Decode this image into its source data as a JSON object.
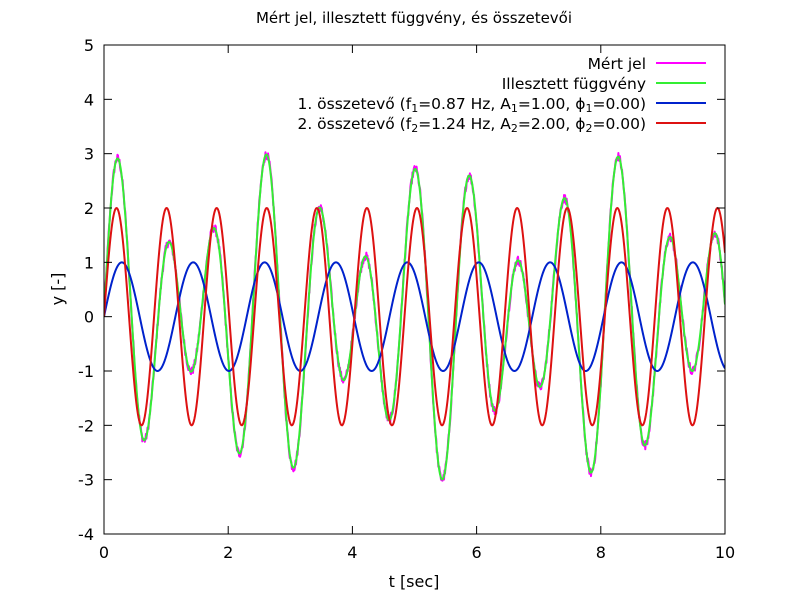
{
  "chart_data": {
    "type": "line",
    "title": "Mért jel, illesztett függvény, és összetevői",
    "xlabel": "t [sec]",
    "ylabel": "y [-]",
    "xlim": [
      0,
      10
    ],
    "ylim": [
      -4,
      5
    ],
    "xticks": [
      0,
      2,
      4,
      6,
      8,
      10
    ],
    "yticks": [
      -4,
      -3,
      -2,
      -1,
      0,
      1,
      2,
      3,
      4,
      5
    ],
    "grid": false,
    "legend_position": "top-right",
    "series": [
      {
        "name": "Mért jel",
        "color": "#ff00ff",
        "model": {
          "components": [
            {
              "freq": 0.87,
              "amp": 1.0,
              "phase": 0.0
            },
            {
              "freq": 1.24,
              "amp": 2.0,
              "phase": 0.0
            }
          ],
          "noise": 0.08
        }
      },
      {
        "name": "Illesztett függvény",
        "color": "#33ee33",
        "model": {
          "components": [
            {
              "freq": 0.87,
              "amp": 1.0,
              "phase": 0.0
            },
            {
              "freq": 1.24,
              "amp": 2.0,
              "phase": 0.0
            }
          ]
        }
      },
      {
        "name": "1. összetevő",
        "legend_parts": [
          "1. összetevő (f",
          "1",
          "=0.87 Hz, A",
          "1",
          "=1.00, ϕ",
          "1",
          "=0.00)"
        ],
        "color": "#0022cc",
        "model": {
          "components": [
            {
              "freq": 0.87,
              "amp": 1.0,
              "phase": 0.0
            }
          ]
        }
      },
      {
        "name": "2. összetevő",
        "legend_parts": [
          "2. összetevő (f",
          "2",
          "=1.24 Hz, A",
          "2",
          "=2.00, ϕ",
          "2",
          "=0.00)"
        ],
        "color": "#dd1111",
        "model": {
          "components": [
            {
              "freq": 1.24,
              "amp": 2.0,
              "phase": 0.0
            }
          ]
        }
      }
    ]
  }
}
